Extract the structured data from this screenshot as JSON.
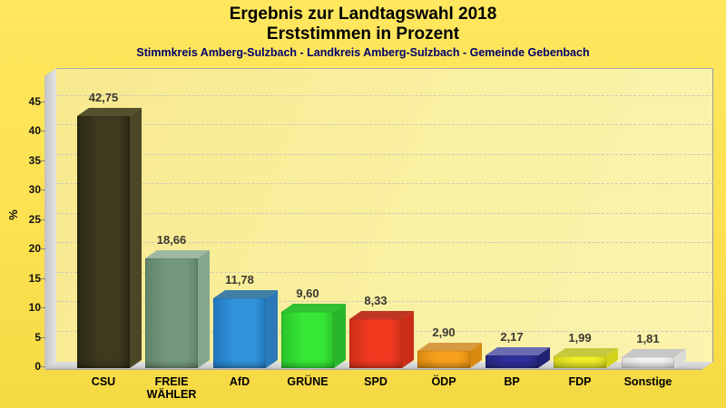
{
  "chart_data": {
    "type": "bar",
    "title": "Ergebnis zur Landtagswahl 2018",
    "subtitle": "Erststimmen in Prozent",
    "caption": "Stimmkreis Amberg-Sulzbach - Landkreis Amberg-Sulzbach - Gemeinde Gebenbach",
    "xlabel": "",
    "ylabel": "%",
    "ylim": [
      0,
      50
    ],
    "yticks": [
      0,
      5,
      10,
      15,
      20,
      25,
      30,
      35,
      40,
      45
    ],
    "grid": "dashed-horizontal",
    "legend": "none",
    "style_3d": true,
    "categories": [
      "CSU",
      "FREIE WÄHLER",
      "AfD",
      "GRÜNE",
      "SPD",
      "ÖDP",
      "BP",
      "FDP",
      "Sonstige"
    ],
    "values": [
      42.75,
      18.66,
      11.78,
      9.6,
      8.33,
      2.9,
      2.17,
      1.99,
      1.81
    ],
    "value_labels": [
      "42,75",
      "18,66",
      "11,78",
      "9,60",
      "8,33",
      "2,90",
      "2,17",
      "1,99",
      "1,81"
    ],
    "bars": [
      {
        "party": "CSU",
        "value": 42.75,
        "label": "42,75",
        "front": "#3E3A20",
        "edge": "#2B2812",
        "top": "#53502E",
        "side": "#4B4726"
      },
      {
        "party": "FREIE WÄHLER",
        "value": 18.66,
        "label": "18,66",
        "front": "#74987C",
        "edge": "#618569",
        "top": "#9DB7A1",
        "side": "#84A68C"
      },
      {
        "party": "AfD",
        "value": 11.78,
        "label": "11,78",
        "front": "#3093DB",
        "edge": "#2478BE",
        "top": "#417FA6",
        "side": "#2B79B8"
      },
      {
        "party": "GRÜNE",
        "value": 9.6,
        "label": "9,60",
        "front": "#36E736",
        "edge": "#2BC32B",
        "top": "#30C030",
        "side": "#2AB62A"
      },
      {
        "party": "SPD",
        "value": 8.33,
        "label": "8,33",
        "front": "#F23A21",
        "edge": "#CE2F18",
        "top": "#BF3724",
        "side": "#CB2D17"
      },
      {
        "party": "ÖDP",
        "value": 2.9,
        "label": "2,90",
        "front": "#F7A01C",
        "edge": "#DB8A12",
        "top": "#D89A40",
        "side": "#D8890F"
      },
      {
        "party": "BP",
        "value": 2.17,
        "label": "2,17",
        "front": "#31319D",
        "edge": "#26267E",
        "top": "#6B6BB2",
        "side": "#232375"
      },
      {
        "party": "FDP",
        "value": 1.99,
        "label": "1,99",
        "front": "#EFEF29",
        "edge": "#D3D31F",
        "top": "#C8C83E",
        "side": "#D3D31C"
      },
      {
        "party": "Sonstige",
        "value": 1.81,
        "label": "1,81",
        "front": "#F5F5F3",
        "edge": "#E0E0DE",
        "top": "#C7C7C5",
        "side": "#DBDBD9"
      }
    ],
    "colors": {
      "background_yellow": "#FCE150",
      "plot_background": "#FAF0A2",
      "caption_blue": "#00006B",
      "gridline_gray": "#C9C9BD",
      "value_label_gray": "#3B3830"
    }
  }
}
